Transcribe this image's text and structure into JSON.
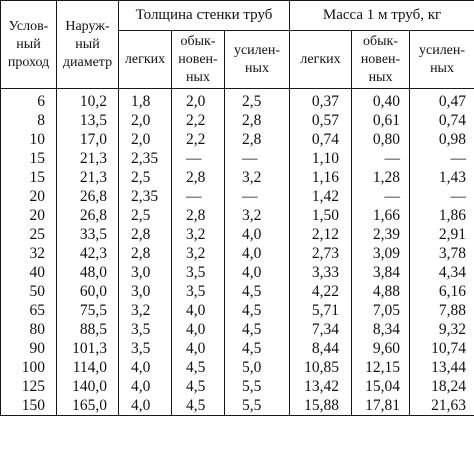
{
  "header": {
    "nominal_bore": "Услов-\nный\nпроход",
    "outer_diameter": "Наруж-\nный\nдиаметр",
    "wall_thickness": "Толщина стенки труб",
    "mass_per_meter": "Масса 1 м труб, кг",
    "thickness_light": "легких",
    "thickness_ordinary": "обык-\nновен-\nных",
    "thickness_reinforced": "усилен-\nных",
    "mass_light": "легких",
    "mass_ordinary": "обык-\nновен-\nных",
    "mass_reinforced": "усилен-\nных"
  },
  "rows": [
    [
      "6",
      "10,2",
      "1,8",
      "2,0",
      "2,5",
      "0,37",
      "0,40",
      "0,47"
    ],
    [
      "8",
      "13,5",
      "2,0",
      "2,2",
      "2,8",
      "0,57",
      "0,61",
      "0,74"
    ],
    [
      "10",
      "17,0",
      "2,0",
      "2,2",
      "2,8",
      "0,74",
      "0,80",
      "0,98"
    ],
    [
      "15",
      "21,3",
      "2,35",
      "—",
      "—",
      "1,10",
      "—",
      "—"
    ],
    [
      "15",
      "21,3",
      "2,5",
      "2,8",
      "3,2",
      "1,16",
      "1,28",
      "1,43"
    ],
    [
      "20",
      "26,8",
      "2,35",
      "—",
      "—",
      "1,42",
      "—",
      "—"
    ],
    [
      "20",
      "26,8",
      "2,5",
      "2,8",
      "3,2",
      "1,50",
      "1,66",
      "1,86"
    ],
    [
      "25",
      "33,5",
      "2,8",
      "3,2",
      "4,0",
      "2,12",
      "2,39",
      "2,91"
    ],
    [
      "32",
      "42,3",
      "2,8",
      "3,2",
      "4,0",
      "2,73",
      "3,09",
      "3,78"
    ],
    [
      "40",
      "48,0",
      "3,0",
      "3,5",
      "4,0",
      "3,33",
      "3,84",
      "4,34"
    ],
    [
      "50",
      "60,0",
      "3,0",
      "3,5",
      "4,5",
      "4,22",
      "4,88",
      "6,16"
    ],
    [
      "65",
      "75,5",
      "3,2",
      "4,0",
      "4,5",
      "5,71",
      "7,05",
      "7,88"
    ],
    [
      "80",
      "88,5",
      "3,5",
      "4,0",
      "4,5",
      "7,34",
      "8,34",
      "9,32"
    ],
    [
      "90",
      "101,3",
      "3,5",
      "4,0",
      "4,5",
      "8,44",
      "9,60",
      "10,74"
    ],
    [
      "100",
      "114,0",
      "4,0",
      "4,5",
      "5,0",
      "10,85",
      "12,15",
      "13,44"
    ],
    [
      "125",
      "140,0",
      "4,0",
      "4,5",
      "5,5",
      "13,42",
      "15,04",
      "18,24"
    ],
    [
      "150",
      "165,0",
      "4,0",
      "4,5",
      "5,5",
      "15,88",
      "17,81",
      "21,63"
    ]
  ]
}
